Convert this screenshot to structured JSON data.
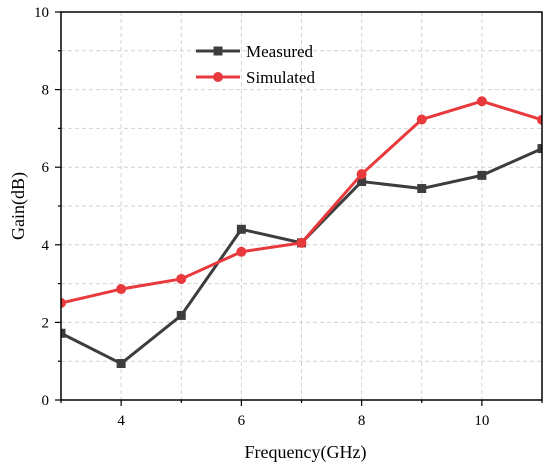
{
  "chart_data": {
    "type": "line",
    "title": "",
    "xlabel": "Frequency(GHz)",
    "ylabel": "Gain(dB)",
    "xlim": [
      3,
      11
    ],
    "ylim": [
      0,
      10
    ],
    "x_ticks": [
      4,
      6,
      8,
      10
    ],
    "y_ticks": [
      0,
      2,
      4,
      6,
      8,
      10
    ],
    "x_tick_labels": [
      "4",
      "6",
      "8",
      "10"
    ],
    "y_tick_labels": [
      "0",
      "2",
      "4",
      "6",
      "8",
      "10"
    ],
    "grid": true,
    "legend_position": "top-center",
    "x": [
      3,
      4,
      5,
      6,
      7,
      8,
      9,
      10,
      11
    ],
    "series": [
      {
        "name": "Measured",
        "color": "#3d3d3d",
        "marker": "square",
        "values": [
          1.72,
          0.94,
          2.18,
          4.4,
          4.05,
          5.63,
          5.45,
          5.79,
          6.48
        ]
      },
      {
        "name": "Simulated",
        "color": "#e8393d",
        "marker": "circle",
        "values": [
          2.5,
          2.86,
          3.12,
          3.82,
          4.05,
          5.82,
          7.23,
          7.7,
          7.22
        ]
      }
    ]
  }
}
